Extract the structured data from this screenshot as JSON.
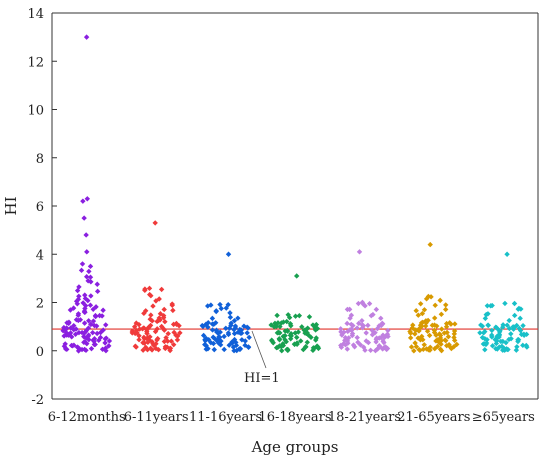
{
  "chart_data": {
    "type": "scatter",
    "xlabel": "Age groups",
    "ylabel": "HI",
    "ylim": [
      -2,
      14
    ],
    "yticks": [
      -2,
      0,
      2,
      4,
      6,
      8,
      10,
      12,
      14
    ],
    "categories": [
      "6-12months",
      "6-11years",
      "11-16years",
      "16-18years",
      "18-21years",
      "21-65years",
      "≥65years"
    ],
    "reference_line": {
      "y": 0.9,
      "label": "HI=1",
      "color": "#e0302a"
    },
    "grid": false,
    "series": [
      {
        "category": "6-12months",
        "color": "#8a1fe0",
        "max": 13.0,
        "outliers": [
          13.0,
          6.3,
          6.2,
          5.5,
          4.8,
          4.1,
          3.6,
          3.5
        ],
        "values": [
          3.3,
          3.1,
          2.9,
          2.7,
          2.5,
          2.3,
          2.2,
          2.1,
          2.0,
          1.9,
          1.8,
          1.7,
          1.6,
          1.5,
          1.4,
          1.3,
          1.2,
          1.1,
          1.0,
          0.9,
          0.8,
          0.7,
          0.6,
          0.5,
          0.4,
          0.3,
          0.2,
          0.1,
          0.05
        ]
      },
      {
        "category": "6-11years",
        "color": "#f03a3a",
        "max": 5.3,
        "outliers": [
          5.3
        ],
        "values": [
          2.6,
          2.5,
          2.3,
          2.1,
          1.9,
          1.7,
          1.5,
          1.4,
          1.3,
          1.2,
          1.1,
          1.0,
          0.9,
          0.8,
          0.7,
          0.6,
          0.5,
          0.4,
          0.3,
          0.2,
          0.1,
          0.05
        ]
      },
      {
        "category": "11-16years",
        "color": "#1060d8",
        "max": 4.0,
        "outliers": [
          4.0
        ],
        "values": [
          1.9,
          1.8,
          1.6,
          1.4,
          1.2,
          1.1,
          1.0,
          0.9,
          0.8,
          0.7,
          0.6,
          0.5,
          0.4,
          0.3,
          0.2,
          0.1,
          0.05
        ]
      },
      {
        "category": "16-18years",
        "color": "#18a050",
        "max": 3.1,
        "outliers": [
          3.1
        ],
        "values": [
          1.5,
          1.4,
          1.2,
          1.1,
          1.0,
          0.9,
          0.8,
          0.7,
          0.6,
          0.5,
          0.4,
          0.3,
          0.2,
          0.1,
          0.05
        ]
      },
      {
        "category": "18-21years",
        "color": "#c080e0",
        "max": 4.1,
        "outliers": [
          4.1
        ],
        "values": [
          2.0,
          1.9,
          1.7,
          1.5,
          1.3,
          1.1,
          1.0,
          0.9,
          0.8,
          0.7,
          0.6,
          0.5,
          0.4,
          0.3,
          0.2,
          0.1,
          0.05
        ]
      },
      {
        "category": "21-65years",
        "color": "#d89a00",
        "max": 4.4,
        "outliers": [
          4.4
        ],
        "values": [
          2.2,
          2.1,
          1.9,
          1.7,
          1.5,
          1.3,
          1.2,
          1.1,
          1.0,
          0.9,
          0.8,
          0.7,
          0.6,
          0.5,
          0.4,
          0.3,
          0.2,
          0.1,
          0.05
        ]
      },
      {
        "category": "≥65years",
        "color": "#18c0c8",
        "max": 4.0,
        "outliers": [
          4.0
        ],
        "values": [
          2.0,
          1.9,
          1.7,
          1.5,
          1.3,
          1.1,
          1.0,
          0.9,
          0.8,
          0.7,
          0.6,
          0.5,
          0.4,
          0.3,
          0.2,
          0.1,
          0.05
        ]
      }
    ]
  }
}
